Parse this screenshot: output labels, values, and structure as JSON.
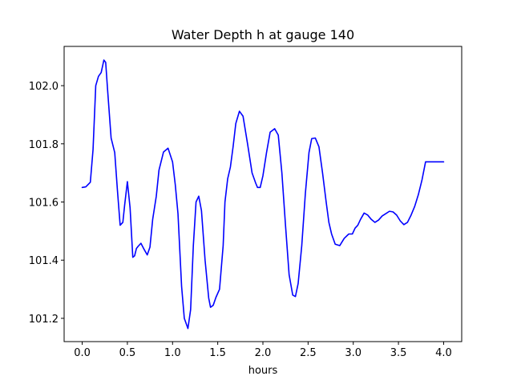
{
  "chart_data": {
    "type": "line",
    "title": "Water Depth h at gauge 140",
    "xlabel": "hours",
    "ylabel": "",
    "xlim": [
      -0.2,
      4.2
    ],
    "ylim": [
      101.12,
      102.135
    ],
    "grid": false,
    "x_ticks": [
      0.0,
      0.5,
      1.0,
      1.5,
      2.0,
      2.5,
      3.0,
      3.5,
      4.0
    ],
    "x_tick_labels": [
      "0.0",
      "0.5",
      "1.0",
      "1.5",
      "2.0",
      "2.5",
      "3.0",
      "3.5",
      "4.0"
    ],
    "y_ticks": [
      101.2,
      101.4,
      101.6,
      101.8,
      102.0
    ],
    "y_tick_labels": [
      "101.2",
      "101.4",
      "101.6",
      "101.8",
      "102.0"
    ],
    "series": [
      {
        "color": "#0000ff",
        "x": [
          0.0,
          0.04,
          0.09,
          0.12,
          0.15,
          0.18,
          0.21,
          0.24,
          0.26,
          0.28,
          0.32,
          0.36,
          0.39,
          0.42,
          0.45,
          0.47,
          0.5,
          0.53,
          0.56,
          0.58,
          0.6,
          0.62,
          0.65,
          0.68,
          0.72,
          0.75,
          0.78,
          0.82,
          0.85,
          0.9,
          0.95,
          1.0,
          1.03,
          1.06,
          1.1,
          1.13,
          1.17,
          1.2,
          1.23,
          1.26,
          1.29,
          1.32,
          1.36,
          1.4,
          1.42,
          1.45,
          1.48,
          1.52,
          1.56,
          1.58,
          1.61,
          1.64,
          1.67,
          1.7,
          1.74,
          1.78,
          1.83,
          1.88,
          1.92,
          1.94,
          1.97,
          2.0,
          2.04,
          2.08,
          2.13,
          2.17,
          2.21,
          2.25,
          2.29,
          2.33,
          2.36,
          2.39,
          2.43,
          2.47,
          2.51,
          2.54,
          2.58,
          2.62,
          2.66,
          2.7,
          2.73,
          2.76,
          2.8,
          2.85,
          2.9,
          2.95,
          2.99,
          3.02,
          3.05,
          3.08,
          3.12,
          3.16,
          3.2,
          3.24,
          3.28,
          3.32,
          3.36,
          3.4,
          3.44,
          3.48,
          3.52,
          3.56,
          3.6,
          3.64,
          3.68,
          3.72,
          3.76,
          3.8,
          3.84,
          3.88,
          3.92,
          3.96,
          4.0
        ],
        "values": [
          101.65,
          101.652,
          101.668,
          101.78,
          102.0,
          102.032,
          102.045,
          102.088,
          102.08,
          101.99,
          101.82,
          101.77,
          101.64,
          101.52,
          101.53,
          101.59,
          101.67,
          101.58,
          101.41,
          101.415,
          101.44,
          101.448,
          101.458,
          101.44,
          101.418,
          101.445,
          101.54,
          101.62,
          101.71,
          101.772,
          101.785,
          101.738,
          101.66,
          101.56,
          101.31,
          101.2,
          101.165,
          101.23,
          101.45,
          101.6,
          101.62,
          101.57,
          101.4,
          101.27,
          101.238,
          101.245,
          101.272,
          101.3,
          101.45,
          101.6,
          101.68,
          101.72,
          101.79,
          101.87,
          101.912,
          101.895,
          101.8,
          101.7,
          101.665,
          101.65,
          101.65,
          101.69,
          101.77,
          101.84,
          101.852,
          101.83,
          101.7,
          101.52,
          101.35,
          101.28,
          101.275,
          101.32,
          101.45,
          101.63,
          101.77,
          101.818,
          101.82,
          101.79,
          101.7,
          101.6,
          101.53,
          101.49,
          101.455,
          101.45,
          101.475,
          101.49,
          101.49,
          101.51,
          101.52,
          101.54,
          101.562,
          101.555,
          101.54,
          101.53,
          101.538,
          101.552,
          101.56,
          101.568,
          101.566,
          101.555,
          101.535,
          101.522,
          101.53,
          101.555,
          101.585,
          101.625,
          101.675,
          101.738,
          101.738,
          101.738,
          101.738,
          101.738,
          101.738
        ]
      }
    ]
  }
}
